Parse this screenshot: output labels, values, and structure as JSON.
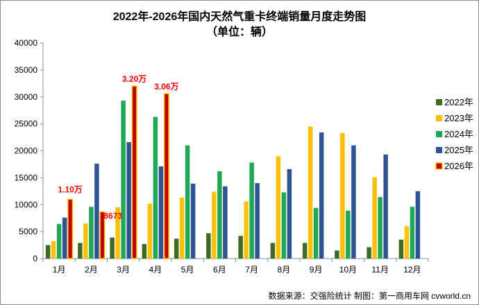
{
  "chart_data": {
    "type": "bar",
    "title": "2022年-2026年国内天然气重卡终端销量月度走势图",
    "subtitle": "（单位：辆）",
    "categories": [
      "1月",
      "2月",
      "3月",
      "4月",
      "5月",
      "6月",
      "7月",
      "8月",
      "9月",
      "10月",
      "11月",
      "12月"
    ],
    "series": [
      {
        "name": "2022年",
        "color": "#3d6b1f",
        "values": [
          2500,
          2900,
          3900,
          2700,
          3700,
          4700,
          4200,
          2900,
          2900,
          1500,
          2100,
          3500
        ]
      },
      {
        "name": "2023年",
        "color": "#ffc000",
        "values": [
          3200,
          6500,
          9500,
          10200,
          11300,
          12400,
          10600,
          19000,
          24500,
          23300,
          15100,
          6000
        ]
      },
      {
        "name": "2024年",
        "color": "#1fa855",
        "values": [
          6400,
          9600,
          29300,
          26300,
          21000,
          16200,
          17800,
          12300,
          9400,
          8900,
          11400,
          9600
        ]
      },
      {
        "name": "2025年",
        "color": "#2f5496",
        "values": [
          7600,
          17600,
          21600,
          17100,
          13900,
          13400,
          14000,
          16600,
          23400,
          21000,
          19300,
          12500
        ]
      },
      {
        "name": "2026年",
        "color": "#c00000",
        "values": [
          11000,
          8673,
          32000,
          30600,
          null,
          null,
          null,
          null,
          null,
          null,
          null,
          null
        ]
      }
    ],
    "annotations": [
      {
        "category_index": 0,
        "series_index": 4,
        "text": "1.10万"
      },
      {
        "category_index": 1,
        "series_index": 4,
        "text": "8673"
      },
      {
        "category_index": 2,
        "series_index": 4,
        "text": "3.20万"
      },
      {
        "category_index": 3,
        "series_index": 4,
        "text": "3.06万"
      }
    ],
    "ylim": [
      0,
      40000
    ],
    "yticks": [
      0,
      5000,
      10000,
      15000,
      20000,
      25000,
      30000,
      35000,
      40000
    ],
    "grid": false,
    "legend_position": "right",
    "highlight_color": "#ffc000",
    "xlabel": "",
    "ylabel": ""
  },
  "source": "数据来源：交强险统计   制图：第一商用车网 cvworld.cn"
}
